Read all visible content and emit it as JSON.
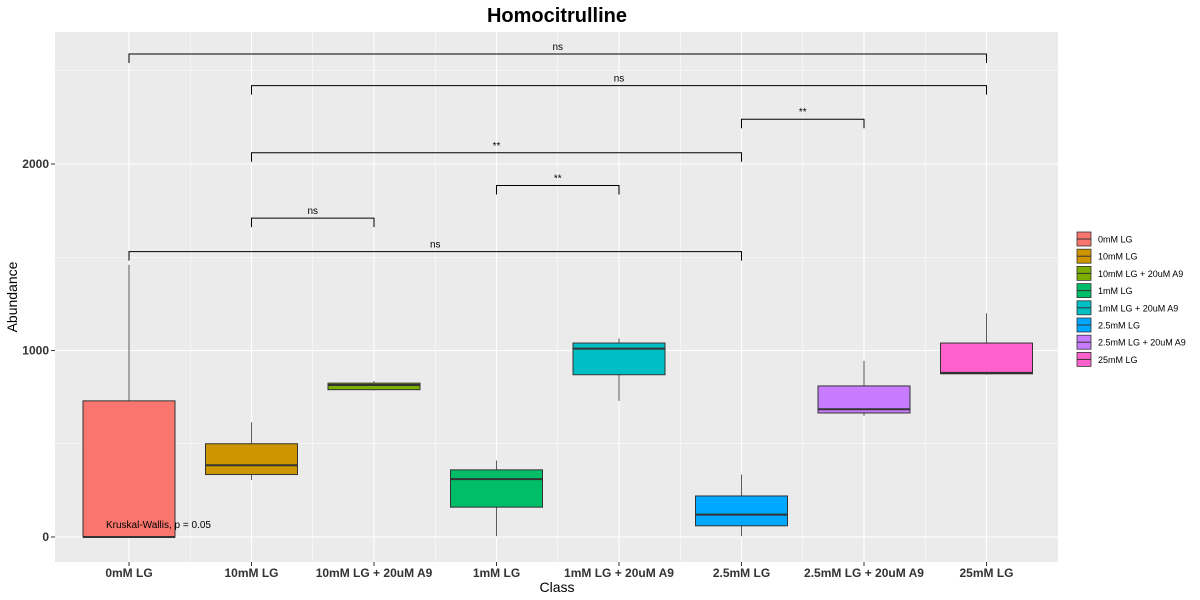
{
  "chart_data": {
    "type": "boxplot",
    "title": "Homocitrulline",
    "xlabel": "Class",
    "ylabel": "Abundance",
    "ylim": [
      -100,
      2720
    ],
    "yticks": [
      0,
      1000,
      2000
    ],
    "grid": true,
    "legend_position": "right",
    "categories": [
      "0mM LG",
      "10mM LG",
      "10mM LG + 20uM A9",
      "1mM LG",
      "1mM LG + 20uM A9",
      "2.5mM LG",
      "2.5mM LG + 20uM A9",
      "25mM LG"
    ],
    "series": [
      {
        "name": "0mM LG",
        "color": "#F8766D",
        "min": 0,
        "q1": 0,
        "median": 0,
        "q3": 730,
        "max": 1460
      },
      {
        "name": "10mM LG",
        "color": "#CD9600",
        "min": 305,
        "q1": 335,
        "median": 385,
        "q3": 500,
        "max": 615
      },
      {
        "name": "10mM LG + 20uM A9",
        "color": "#7CAE00",
        "min": 785,
        "q1": 790,
        "median": 815,
        "q3": 825,
        "max": 835
      },
      {
        "name": "1mM LG",
        "color": "#00BE67",
        "min": 5,
        "q1": 160,
        "median": 310,
        "q3": 360,
        "max": 410
      },
      {
        "name": "1mM LG + 20uM A9",
        "color": "#00BFC4",
        "min": 730,
        "q1": 870,
        "median": 1010,
        "q3": 1040,
        "max": 1065
      },
      {
        "name": "2.5mM LG",
        "color": "#00A9FF",
        "min": 5,
        "q1": 60,
        "median": 120,
        "q3": 220,
        "max": 335
      },
      {
        "name": "2.5mM LG + 20uM A9",
        "color": "#C77CFF",
        "min": 650,
        "q1": 665,
        "median": 685,
        "q3": 810,
        "max": 945
      },
      {
        "name": "25mM LG",
        "color": "#FF61CC",
        "min": 870,
        "q1": 875,
        "median": 880,
        "q3": 1040,
        "max": 1200
      }
    ],
    "comparisons": [
      {
        "from": "0mM LG",
        "to": "2.5mM LG",
        "y": 1530,
        "label": "ns"
      },
      {
        "from": "10mM LG",
        "to": "10mM LG + 20uM A9",
        "y": 1710,
        "label": "ns"
      },
      {
        "from": "1mM LG",
        "to": "1mM LG + 20uM A9",
        "y": 1885,
        "label": "**"
      },
      {
        "from": "10mM LG",
        "to": "2.5mM LG",
        "y": 2060,
        "label": "**"
      },
      {
        "from": "2.5mM LG",
        "to": "2.5mM LG + 20uM A9",
        "y": 2240,
        "label": "**"
      },
      {
        "from": "10mM LG",
        "to": "25mM LG",
        "y": 2420,
        "label": "ns"
      },
      {
        "from": "0mM LG",
        "to": "25mM LG",
        "y": 2590,
        "label": "ns"
      }
    ],
    "annotation": "Kruskal-Wallis, p = 0.05"
  }
}
